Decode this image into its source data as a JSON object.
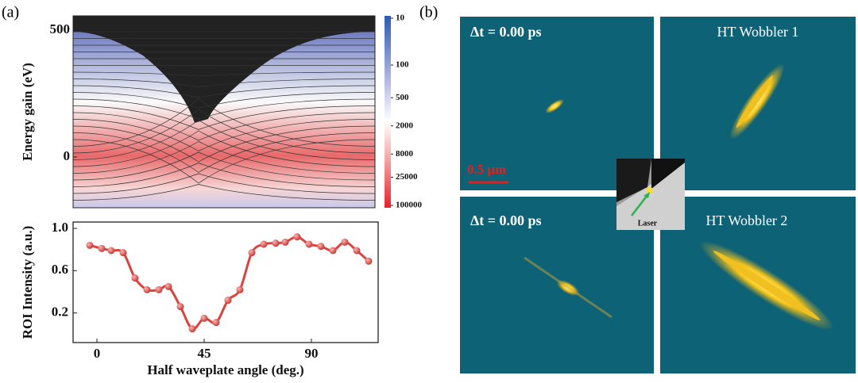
{
  "labels": {
    "a": "(a)",
    "b": "(b)"
  },
  "chart_data": [
    {
      "type": "contour",
      "ylabel": "Energy gain (eV)",
      "ylim": [
        -200,
        556
      ],
      "yticks": [
        0,
        500
      ],
      "colorbar": {
        "scale": "log",
        "lim": [
          10,
          100000
        ],
        "ticks": [
          10,
          100,
          500,
          2000,
          8000,
          25000,
          100000
        ]
      }
    },
    {
      "type": "line",
      "xlabel": "Half waveplate angle (deg.)",
      "ylabel": "ROI Intensity (a.u.)",
      "x": [
        -3,
        2,
        6,
        11,
        16,
        21,
        26,
        30,
        35,
        40,
        45,
        50,
        55,
        60,
        65,
        70,
        75,
        79,
        84,
        89,
        94,
        99,
        104,
        109,
        114
      ],
      "values": [
        0.84,
        0.81,
        0.79,
        0.77,
        0.53,
        0.42,
        0.42,
        0.45,
        0.26,
        0.05,
        0.15,
        0.11,
        0.32,
        0.42,
        0.77,
        0.85,
        0.86,
        0.87,
        0.92,
        0.85,
        0.83,
        0.79,
        0.87,
        0.79,
        0.69
      ],
      "color": "#d9443f",
      "xlim": [
        -10,
        118
      ],
      "ylim": [
        -0.08,
        1.06
      ],
      "xticks": [
        0,
        45,
        90
      ],
      "yticks": [
        0.2,
        0.6,
        {
          "value": 1,
          "label": "1.0"
        }
      ]
    }
  ],
  "panels": [
    "Δt = 0.00 ps",
    "HT Wobbler 1",
    "Δt = 0.00 ps",
    "HT Wobbler 2"
  ],
  "scale_bar": "0.5 μm",
  "inset": "Laser"
}
